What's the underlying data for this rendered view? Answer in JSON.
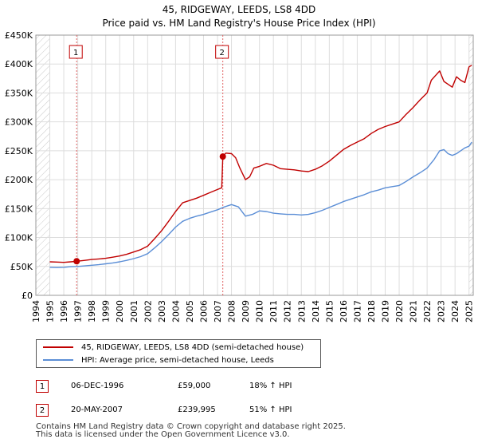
{
  "title": "45, RIDGEWAY, LEEDS, LS8 4DD",
  "subtitle": "Price paid vs. HM Land Registry's House Price Index (HPI)",
  "colors": {
    "property": "#c00000",
    "hpi": "#5b8ed6",
    "grid": "#dddddd",
    "marker": "#c00000"
  },
  "chart_data": {
    "type": "line",
    "ylim": [
      0,
      450000
    ],
    "xlim": [
      1994,
      2025.3
    ],
    "y_ticks": [
      0,
      50000,
      100000,
      150000,
      200000,
      250000,
      300000,
      350000,
      400000,
      450000
    ],
    "y_tick_labels": [
      "£0",
      "£50K",
      "£100K",
      "£150K",
      "£200K",
      "£250K",
      "£300K",
      "£350K",
      "£400K",
      "£450K"
    ],
    "x_ticks": [
      1994,
      1995,
      1996,
      1997,
      1998,
      1999,
      2000,
      2001,
      2002,
      2003,
      2004,
      2005,
      2006,
      2007,
      2008,
      2009,
      2010,
      2011,
      2012,
      2013,
      2014,
      2015,
      2016,
      2017,
      2018,
      2019,
      2020,
      2021,
      2022,
      2023,
      2024,
      2025
    ],
    "x_tick_labels": [
      "1994",
      "1995",
      "1996",
      "1997",
      "1998",
      "1999",
      "2000",
      "2001",
      "2002",
      "2003",
      "2004",
      "2005",
      "2006",
      "2007",
      "2008",
      "2009",
      "2010",
      "2011",
      "2012",
      "2013",
      "2014",
      "2015",
      "2016",
      "2017",
      "2018",
      "2019",
      "2020",
      "2021",
      "2022",
      "2023",
      "2024",
      "2025"
    ],
    "hatched_ranges": [
      [
        1994,
        1995
      ],
      [
        2025,
        2025.3
      ]
    ],
    "sales": [
      {
        "label": "1",
        "x": 1996.92,
        "y": 59000
      },
      {
        "label": "2",
        "x": 2007.38,
        "y": 239995
      }
    ],
    "series": [
      {
        "name": "45, RIDGEWAY, LEEDS, LS8 4DD (semi-detached house)",
        "x": [
          1995.0,
          1995.5,
          1996.0,
          1996.5,
          1996.92,
          1997.5,
          1998.0,
          1998.5,
          1999.0,
          1999.5,
          2000.0,
          2000.5,
          2001.0,
          2001.5,
          2002.0,
          2002.5,
          2003.0,
          2003.5,
          2004.0,
          2004.5,
          2005.0,
          2005.5,
          2006.0,
          2006.5,
          2007.0,
          2007.3,
          2007.38,
          2007.6,
          2008.0,
          2008.3,
          2008.6,
          2009.0,
          2009.3,
          2009.6,
          2010.0,
          2010.5,
          2011.0,
          2011.5,
          2012.0,
          2012.5,
          2013.0,
          2013.5,
          2014.0,
          2014.5,
          2015.0,
          2015.5,
          2016.0,
          2016.5,
          2017.0,
          2017.5,
          2018.0,
          2018.5,
          2019.0,
          2019.5,
          2020.0,
          2020.5,
          2021.0,
          2021.5,
          2022.0,
          2022.3,
          2022.6,
          2022.9,
          2023.2,
          2023.5,
          2023.8,
          2024.1,
          2024.4,
          2024.7,
          2025.0,
          2025.2
        ],
        "values": [
          58000,
          57500,
          57000,
          58000,
          59000,
          60500,
          62000,
          63000,
          64000,
          66000,
          68000,
          71000,
          75000,
          79000,
          85000,
          98000,
          112000,
          128000,
          145000,
          160000,
          164000,
          168000,
          173000,
          178000,
          183000,
          186000,
          239995,
          246000,
          245000,
          238000,
          220000,
          200000,
          205000,
          220000,
          223000,
          228000,
          225000,
          219000,
          218000,
          217000,
          215000,
          214000,
          218000,
          224000,
          232000,
          242000,
          252000,
          259000,
          265000,
          271000,
          280000,
          287000,
          292000,
          296000,
          300000,
          313000,
          325000,
          338000,
          350000,
          372000,
          380000,
          388000,
          370000,
          365000,
          360000,
          378000,
          372000,
          368000,
          395000,
          398000
        ]
      },
      {
        "name": "HPI: Average price, semi-detached house, Leeds",
        "x": [
          1995.0,
          1995.5,
          1996.0,
          1996.5,
          1997.0,
          1997.5,
          1998.0,
          1998.5,
          1999.0,
          1999.5,
          2000.0,
          2000.5,
          2001.0,
          2001.5,
          2002.0,
          2002.5,
          2003.0,
          2003.5,
          2004.0,
          2004.5,
          2005.0,
          2005.5,
          2006.0,
          2006.5,
          2007.0,
          2007.5,
          2008.0,
          2008.5,
          2009.0,
          2009.5,
          2010.0,
          2010.5,
          2011.0,
          2011.5,
          2012.0,
          2012.5,
          2013.0,
          2013.5,
          2014.0,
          2014.5,
          2015.0,
          2015.5,
          2016.0,
          2016.5,
          2017.0,
          2017.5,
          2018.0,
          2018.5,
          2019.0,
          2019.5,
          2020.0,
          2020.5,
          2021.0,
          2021.5,
          2022.0,
          2022.5,
          2022.9,
          2023.2,
          2023.5,
          2023.8,
          2024.1,
          2024.4,
          2024.7,
          2025.0,
          2025.2
        ],
        "values": [
          48500,
          48000,
          48500,
          49500,
          50000,
          51000,
          52000,
          53000,
          54500,
          56000,
          58000,
          60500,
          63500,
          67000,
          72000,
          82000,
          93000,
          105000,
          118000,
          128000,
          133000,
          137000,
          140000,
          144000,
          148000,
          153000,
          157000,
          153000,
          137000,
          140000,
          146000,
          145000,
          142000,
          141000,
          140000,
          140000,
          139000,
          140000,
          143000,
          147000,
          152000,
          157000,
          162000,
          166000,
          170000,
          174000,
          179000,
          182000,
          186000,
          188000,
          190000,
          197000,
          205000,
          212000,
          220000,
          235000,
          250000,
          252000,
          245000,
          242000,
          245000,
          250000,
          255000,
          258000,
          265000
        ]
      }
    ]
  },
  "legend": {
    "property_label": "45, RIDGEWAY, LEEDS, LS8 4DD (semi-detached house)",
    "hpi_label": "HPI: Average price, semi-detached house, Leeds"
  },
  "annotations": [
    {
      "num": "1",
      "date": "06-DEC-1996",
      "price": "£59,000",
      "hpi": "18% ↑ HPI"
    },
    {
      "num": "2",
      "date": "20-MAY-2007",
      "price": "£239,995",
      "hpi": "51% ↑ HPI"
    }
  ],
  "footer": {
    "line1": "Contains HM Land Registry data © Crown copyright and database right 2025.",
    "line2": "This data is licensed under the Open Government Licence v3.0."
  }
}
